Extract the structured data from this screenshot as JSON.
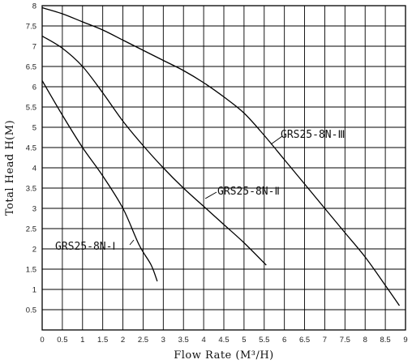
{
  "chart_data": {
    "type": "line",
    "title": "",
    "xlabel": "Flow Rate (M³/H)",
    "ylabel": "Total Head H(M)",
    "xlim": [
      0,
      9
    ],
    "ylim": [
      0,
      8
    ],
    "x_ticks": [
      "0",
      "0.5",
      "1",
      "1.5",
      "2",
      "2.5",
      "3",
      "3.5",
      "4",
      "4.5",
      "5",
      "5.5",
      "6",
      "6.5",
      "7",
      "7.5",
      "8",
      "8.5",
      "9"
    ],
    "y_ticks": [
      "0.5",
      "1",
      "1.5",
      "2",
      "2.5",
      "3",
      "3.5",
      "4",
      "4.5",
      "5",
      "5.5",
      "6",
      "6.5",
      "7",
      "7.5",
      "8"
    ],
    "grid": true,
    "series": [
      {
        "name": "GRS25-8N-Ⅰ",
        "x": [
          0,
          0.5,
          1.0,
          1.5,
          2.0,
          2.4,
          2.7,
          2.85
        ],
        "y": [
          6.15,
          5.3,
          4.5,
          3.8,
          3.0,
          2.1,
          1.6,
          1.2
        ]
      },
      {
        "name": "GRS25-8N-Ⅱ",
        "x": [
          0,
          0.5,
          1.0,
          1.5,
          2.0,
          2.5,
          3.0,
          3.5,
          4.0,
          4.5,
          5.0,
          5.55
        ],
        "y": [
          7.25,
          6.95,
          6.5,
          5.85,
          5.15,
          4.55,
          4.0,
          3.5,
          3.05,
          2.6,
          2.15,
          1.6
        ]
      },
      {
        "name": "GRS25-8N-Ⅲ",
        "x": [
          0,
          0.5,
          1.0,
          1.5,
          2.0,
          2.5,
          3.0,
          3.5,
          4.0,
          4.5,
          5.0,
          5.5,
          6.0,
          6.5,
          7.0,
          7.5,
          8.0,
          8.5,
          8.85
        ],
        "y": [
          7.95,
          7.8,
          7.6,
          7.4,
          7.15,
          6.9,
          6.65,
          6.4,
          6.1,
          5.75,
          5.35,
          4.8,
          4.2,
          3.6,
          3.0,
          2.4,
          1.8,
          1.1,
          0.6
        ]
      }
    ],
    "annotations": [
      {
        "text": "GRS25-8N-Ⅰ",
        "series": "GRS25-8N-Ⅰ"
      },
      {
        "text": "GRS25-8N-Ⅱ",
        "series": "GRS25-8N-Ⅱ"
      },
      {
        "text": "GRS25-8N-Ⅲ",
        "series": "GRS25-8N-Ⅲ"
      }
    ]
  }
}
